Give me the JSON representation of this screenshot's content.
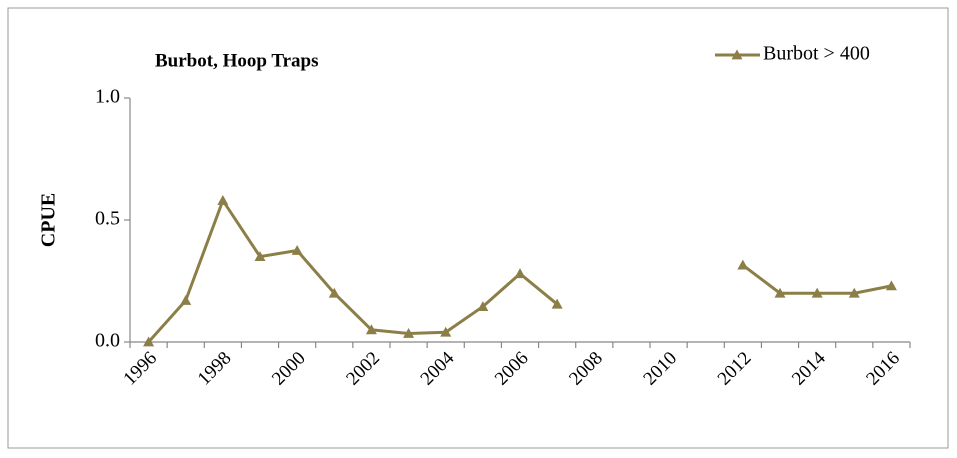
{
  "chart_data": {
    "type": "line",
    "title": "Burbot, Hoop Traps",
    "y_label": "CPUE",
    "categories": [
      "1996",
      null,
      "1998",
      null,
      "2000",
      null,
      "2002",
      null,
      "2004",
      null,
      "2006",
      null,
      "2008",
      null,
      "2010",
      null,
      "2012",
      null,
      "2014",
      null,
      "2016"
    ],
    "series": [
      {
        "name": "Burbot > 400",
        "color": "#8c7e47",
        "values": [
          0,
          0.17,
          0.58,
          0.35,
          0.375,
          0.2,
          0.05,
          0.035,
          0.04,
          0.145,
          0.28,
          0.155,
          null,
          null,
          null,
          null,
          0.315,
          0.2,
          0.2,
          0.2,
          0.23
        ]
      }
    ],
    "ylim": [
      0,
      1
    ],
    "yticks": [
      {
        "value": 0,
        "label": "0.0"
      },
      {
        "value": 0.5,
        "label": "0.5"
      },
      {
        "value": 1,
        "label": "1.0"
      }
    ],
    "grid": false,
    "legend": "top-right"
  }
}
